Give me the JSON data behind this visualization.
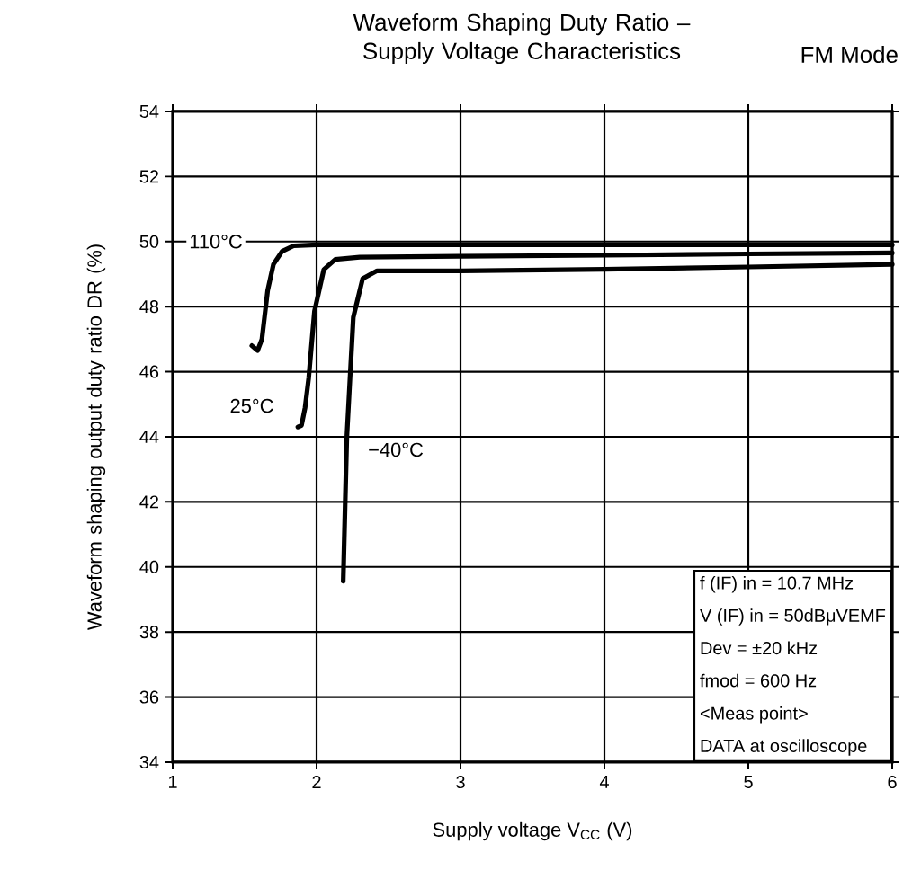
{
  "chart_data": {
    "type": "line",
    "title": "Waveform Shaping Duty Ratio – Supply Voltage Characteristics",
    "subtitle": "FM Mode",
    "xlabel": "Supply voltage V$_{CC}$ (V)",
    "ylabel": "Waveform shaping output duty ratio DR (%)",
    "xlim": [
      1,
      6
    ],
    "ylim": [
      34,
      54
    ],
    "xticks": [
      1,
      2,
      3,
      4,
      5,
      6
    ],
    "yticks": [
      34,
      36,
      38,
      40,
      42,
      44,
      46,
      48,
      50,
      52,
      54
    ],
    "grid": true,
    "series": [
      {
        "color": "#000000",
        "x": [
          1.55,
          1.59,
          1.62,
          1.66,
          1.7,
          1.76,
          1.84,
          2.0,
          3,
          4,
          5,
          6
        ],
        "values": [
          46.8,
          46.65,
          47.0,
          48.5,
          49.3,
          49.7,
          49.87,
          49.9,
          49.9,
          49.9,
          49.9,
          49.9
        ]
      },
      {
        "color": "#000000",
        "x": [
          1.87,
          1.895,
          1.92,
          1.945,
          1.985,
          2.05,
          2.13,
          2.3,
          3,
          4,
          5,
          6
        ],
        "values": [
          44.3,
          44.35,
          44.9,
          45.8,
          47.85,
          49.14,
          49.45,
          49.52,
          49.55,
          49.58,
          49.62,
          49.65
        ]
      },
      {
        "color": "#000000",
        "x": [
          2.185,
          2.21,
          2.255,
          2.32,
          2.42,
          2.6,
          3,
          4,
          5,
          6
        ],
        "values": [
          39.56,
          43.98,
          47.67,
          48.86,
          49.1,
          49.1,
          49.1,
          49.15,
          49.22,
          49.3
        ]
      }
    ],
    "annotations": [
      {
        "text": "110°C",
        "x": 1.3,
        "y": 50
      },
      {
        "text": "25°C",
        "x": 1.55,
        "y": 44.95
      },
      {
        "text": "−40°C",
        "x": 2.55,
        "y": 43.6
      },
      "f (IF) in = 10.7 MHz",
      "V (IF) in = 50dBμVEMF",
      "Dev = ±20 kHz",
      "fmod = 600 Hz",
      "<Meas point>",
      "DATA at oscilloscope"
    ]
  }
}
